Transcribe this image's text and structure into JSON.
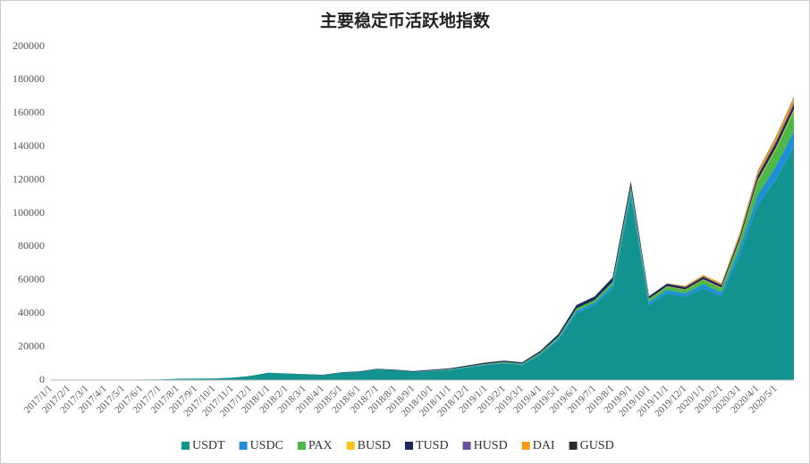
{
  "chart_data": {
    "type": "stacked-area",
    "title": "主要稳定币活跃地指数",
    "categories": [
      "2017/1/1",
      "2017/2/1",
      "2017/3/1",
      "2017/4/1",
      "2017/5/1",
      "2017/6/1",
      "2017/7/1",
      "2017/8/1",
      "2017/9/1",
      "2017/10/1",
      "2017/11/1",
      "2017/12/1",
      "2018/1/1",
      "2018/2/1",
      "2018/3/1",
      "2018/4/1",
      "2018/5/1",
      "2018/6/1",
      "2018/7/1",
      "2018/8/1",
      "2018/9/1",
      "2018/10/1",
      "2018/11/1",
      "2018/12/1",
      "2019/1/1",
      "2019/2/1",
      "2019/3/1",
      "2019/4/1",
      "2019/5/1",
      "2019/6/1",
      "2019/7/1",
      "2019/8/1",
      "2019/9/1",
      "2019/10/1",
      "2019/11/1",
      "2019/12/1",
      "2020/1/1",
      "2020/2/1",
      "2020/3/1",
      "2020/4/1",
      "2020/5/1",
      null
    ],
    "series": [
      {
        "name": "USDT",
        "color": "#13938f",
        "values": [
          200,
          200,
          200,
          200,
          200,
          300,
          400,
          800,
          900,
          1000,
          1500,
          2500,
          4500,
          4000,
          3500,
          3000,
          4500,
          5000,
          6500,
          6000,
          5000,
          5500,
          6000,
          7500,
          9000,
          10000,
          9000,
          15000,
          24000,
          40000,
          45000,
          55000,
          110000,
          45000,
          52000,
          50000,
          55000,
          50000,
          75000,
          105000,
          120000,
          140000
        ]
      },
      {
        "name": "USDC",
        "color": "#1f8fd8",
        "values": [
          0,
          0,
          0,
          0,
          0,
          0,
          0,
          0,
          0,
          0,
          0,
          0,
          0,
          0,
          0,
          0,
          0,
          0,
          0,
          0,
          0,
          100,
          200,
          300,
          300,
          400,
          400,
          600,
          1000,
          1500,
          1500,
          2000,
          3000,
          2000,
          2000,
          2000,
          2500,
          2500,
          4000,
          6000,
          8000,
          9000
        ]
      },
      {
        "name": "PAX",
        "color": "#4bb848",
        "values": [
          0,
          0,
          0,
          0,
          0,
          0,
          0,
          0,
          0,
          0,
          0,
          0,
          0,
          0,
          0,
          0,
          0,
          0,
          0,
          0,
          0,
          100,
          300,
          400,
          500,
          500,
          500,
          800,
          1000,
          1500,
          1500,
          2000,
          3000,
          1500,
          2000,
          2000,
          2500,
          2500,
          4000,
          8000,
          10000,
          12000
        ]
      },
      {
        "name": "BUSD",
        "color": "#f5c518",
        "values": [
          0,
          0,
          0,
          0,
          0,
          0,
          0,
          0,
          0,
          0,
          0,
          0,
          0,
          0,
          0,
          0,
          0,
          0,
          0,
          0,
          0,
          0,
          0,
          0,
          0,
          0,
          0,
          0,
          0,
          0,
          0,
          0,
          0,
          200,
          300,
          300,
          400,
          400,
          600,
          800,
          1000,
          1200
        ]
      },
      {
        "name": "TUSD",
        "color": "#1b2a5c",
        "values": [
          0,
          0,
          0,
          0,
          0,
          0,
          0,
          0,
          0,
          0,
          0,
          0,
          0,
          0,
          100,
          200,
          200,
          300,
          300,
          300,
          400,
          500,
          500,
          600,
          700,
          700,
          700,
          1000,
          1500,
          2000,
          2000,
          2500,
          3000,
          1500,
          1500,
          1500,
          1500,
          1500,
          2000,
          2500,
          3000,
          3000
        ]
      },
      {
        "name": "HUSD",
        "color": "#6a4fa0",
        "values": [
          0,
          0,
          0,
          0,
          0,
          0,
          0,
          0,
          0,
          0,
          0,
          0,
          0,
          0,
          0,
          0,
          0,
          0,
          0,
          0,
          0,
          0,
          0,
          0,
          0,
          0,
          0,
          0,
          0,
          0,
          0,
          0,
          0,
          0,
          0,
          0,
          200,
          300,
          500,
          800,
          1000,
          1200
        ]
      },
      {
        "name": "DAI",
        "color": "#f39c12",
        "values": [
          0,
          0,
          0,
          0,
          0,
          0,
          0,
          0,
          0,
          0,
          0,
          0,
          0,
          0,
          0,
          0,
          0,
          0,
          0,
          0,
          0,
          0,
          0,
          0,
          0,
          0,
          0,
          0,
          0,
          0,
          0,
          0,
          0,
          0,
          0,
          500,
          800,
          800,
          1500,
          2000,
          2500,
          3000
        ]
      },
      {
        "name": "GUSD",
        "color": "#2b2b2b",
        "values": [
          0,
          0,
          0,
          0,
          0,
          0,
          0,
          0,
          0,
          0,
          0,
          0,
          0,
          0,
          0,
          0,
          0,
          0,
          0,
          0,
          0,
          50,
          50,
          50,
          100,
          100,
          100,
          100,
          100,
          100,
          100,
          100,
          100,
          100,
          100,
          100,
          100,
          100,
          200,
          300,
          300,
          400
        ]
      }
    ],
    "ylim": [
      0,
      200000
    ],
    "yticks": [
      0,
      20000,
      40000,
      60000,
      80000,
      100000,
      120000,
      140000,
      160000,
      180000,
      200000
    ]
  }
}
